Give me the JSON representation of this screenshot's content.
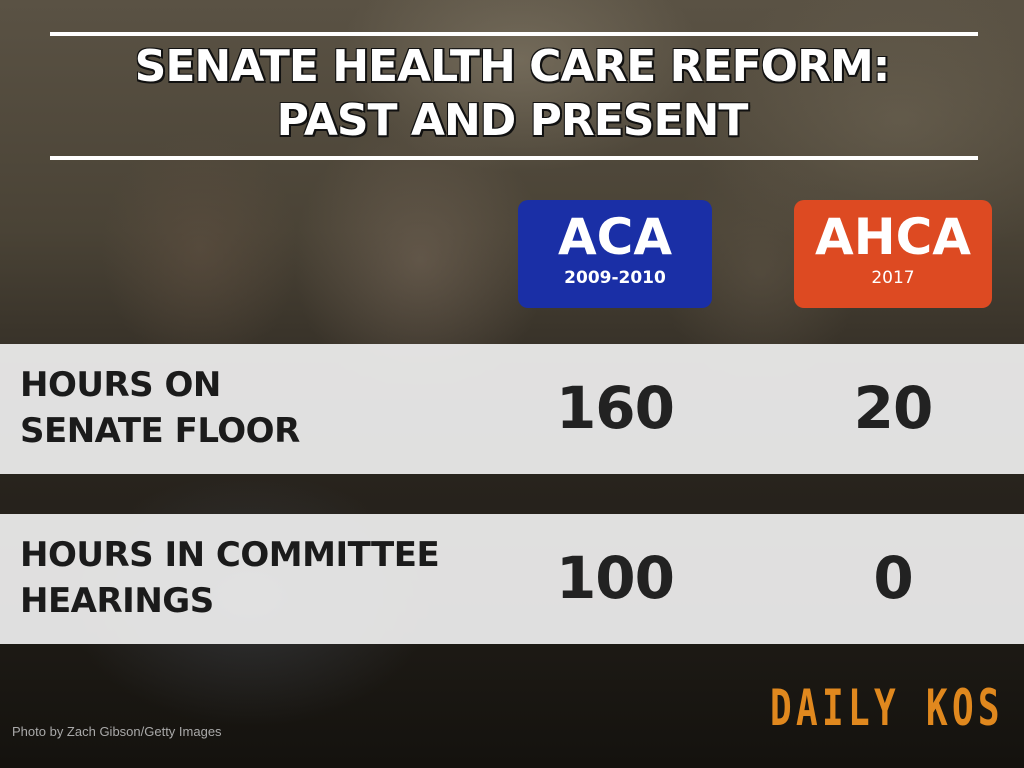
{
  "header": {
    "title_line1": "SENATE HEALTH CARE REFORM:",
    "title_line2": "PAST AND PRESENT"
  },
  "colors": {
    "aca": "#1a2fa6",
    "ahca": "#dd4a22",
    "logo": "#e0881e"
  },
  "chart_data": {
    "type": "table",
    "title": "SENATE HEALTH CARE REFORM: PAST AND PRESENT",
    "columns": [
      {
        "name": "ACA",
        "period": "2009-2010"
      },
      {
        "name": "AHCA",
        "period": "2017"
      }
    ],
    "rows": [
      {
        "label_line1": "HOURS ON",
        "label_line2": "SENATE FLOOR",
        "values": [
          160,
          20
        ]
      },
      {
        "label_line1": "HOURS IN COMMITTEE",
        "label_line2": "HEARINGS",
        "values": [
          100,
          0
        ]
      }
    ]
  },
  "footer": {
    "credit": "Photo by Zach Gibson/Getty Images",
    "logo_text": "DAILY KOS"
  }
}
